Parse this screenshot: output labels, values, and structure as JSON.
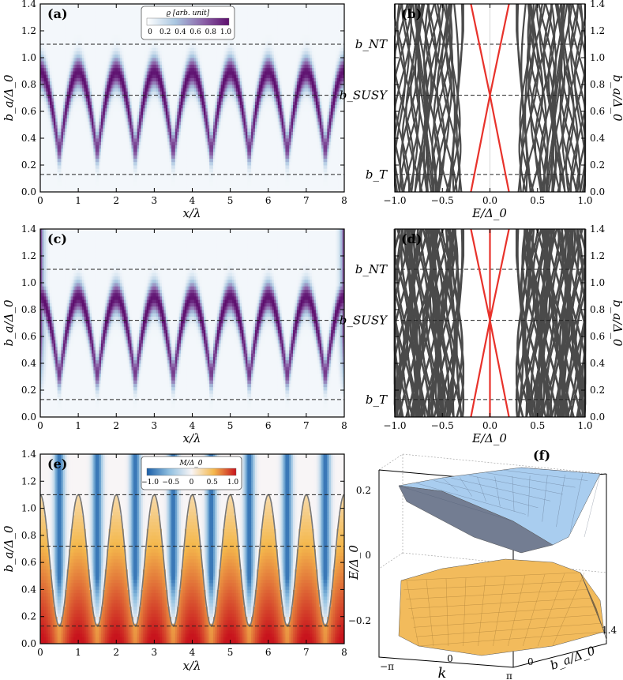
{
  "panels": {
    "a": {
      "label": "(a)",
      "xlabel": "x/λ",
      "ylabel": "b_a/Δ_0",
      "xticks": [
        "0",
        "1",
        "2",
        "3",
        "4",
        "5",
        "6",
        "7",
        "8"
      ],
      "yticks": [
        "0.0",
        "0.2",
        "0.4",
        "0.6",
        "0.8",
        "1.0",
        "1.2",
        "1.4"
      ],
      "colorbar": {
        "title": "ϱ [arb. unit]",
        "ticks": [
          "0",
          "0.2",
          "0.4",
          "0.6",
          "0.8",
          "1.0"
        ]
      }
    },
    "b": {
      "label": "(b)",
      "xlabel": "E/Δ_0",
      "ylabel": "b_a/Δ_0",
      "xticks": [
        "−1.0",
        "−0.5",
        "0.0",
        "0.5",
        "1.0"
      ],
      "yticks": [
        "0.0",
        "0.2",
        "0.4",
        "0.6",
        "0.8",
        "1.0",
        "1.2",
        "1.4"
      ],
      "markers": [
        "b_NT",
        "b_SUSY",
        "b_T"
      ]
    },
    "c": {
      "label": "(c)",
      "xlabel": "x/λ",
      "ylabel": "b_a/Δ_0",
      "xticks": [
        "0",
        "1",
        "2",
        "3",
        "4",
        "5",
        "6",
        "7",
        "8"
      ],
      "yticks": [
        "0.0",
        "0.2",
        "0.4",
        "0.6",
        "0.8",
        "1.0",
        "1.2",
        "1.4"
      ]
    },
    "d": {
      "label": "(d)",
      "xlabel": "E/Δ_0",
      "ylabel": "b_a/Δ_0",
      "xticks": [
        "−1.0",
        "−0.5",
        "0.0",
        "0.5",
        "1.0"
      ],
      "yticks": [
        "0.0",
        "0.2",
        "0.4",
        "0.6",
        "0.8",
        "1.0",
        "1.2",
        "1.4"
      ],
      "markers": [
        "b_NT",
        "b_SUSY",
        "b_T"
      ]
    },
    "e": {
      "label": "(e)",
      "xlabel": "x/λ",
      "ylabel": "b_a/Δ_0",
      "xticks": [
        "0",
        "1",
        "2",
        "3",
        "4",
        "5",
        "6",
        "7",
        "8"
      ],
      "yticks": [
        "0.0",
        "0.2",
        "0.4",
        "0.6",
        "0.8",
        "1.0",
        "1.2",
        "1.4"
      ],
      "colorbar": {
        "title": "M/Δ_0",
        "ticks": [
          "−1.0",
          "−0.5",
          "0",
          "0.5",
          "1.0"
        ]
      }
    },
    "f": {
      "label": "(f)",
      "zlabel": "E/Δ_0",
      "klabel": "k",
      "blabel": "b_a/Δ_0",
      "zticks": [
        "0.2",
        "0",
        "−0.2"
      ],
      "kticks": [
        "−π",
        "0",
        "π"
      ],
      "bticks": [
        "0",
        "1.4"
      ]
    }
  },
  "chart_data": [
    {
      "type": "heatmap",
      "panel": "a",
      "title": "",
      "xlabel": "x/λ",
      "ylabel": "b_a/Δ_0",
      "xlim": [
        0,
        8
      ],
      "ylim": [
        0,
        1.4
      ],
      "colorscale": "white-blue-purple",
      "clim": [
        0,
        1.0
      ],
      "hlines": [
        0.13,
        0.72,
        1.1
      ]
    },
    {
      "type": "line",
      "panel": "b",
      "title": "",
      "xlabel": "E/Δ_0",
      "ylabel": "b_a/Δ_0",
      "xlim": [
        -1.0,
        1.0
      ],
      "ylim": [
        0,
        1.4
      ],
      "hlines": [
        0.13,
        0.72,
        1.1
      ],
      "hline_labels": [
        "b_T",
        "b_SUSY",
        "b_NT"
      ],
      "crossing": {
        "E": 0.0,
        "b": 0.72
      },
      "series": [
        {
          "color": "#e8322b",
          "points": [
            [
              -0.2,
              0.0
            ],
            [
              0.0,
              0.72
            ],
            [
              0.2,
              1.4
            ]
          ]
        },
        {
          "color": "#e8322b",
          "points": [
            [
              0.2,
              0.0
            ],
            [
              0.0,
              0.72
            ],
            [
              -0.2,
              1.4
            ]
          ]
        }
      ]
    },
    {
      "type": "heatmap",
      "panel": "c",
      "title": "",
      "xlabel": "x/λ",
      "ylabel": "b_a/Δ_0",
      "xlim": [
        0,
        8
      ],
      "ylim": [
        0,
        1.4
      ],
      "colorscale": "white-blue-purple",
      "hlines": [
        0.13,
        0.72,
        1.1
      ]
    },
    {
      "type": "line",
      "panel": "d",
      "title": "",
      "xlabel": "E/Δ_0",
      "ylabel": "b_a/Δ_0",
      "xlim": [
        -1.0,
        1.0
      ],
      "ylim": [
        0,
        1.4
      ],
      "hlines": [
        0.13,
        0.72,
        1.1
      ],
      "hline_labels": [
        "b_T",
        "b_SUSY",
        "b_NT"
      ],
      "crossing": {
        "E": 0.0,
        "b": 0.72
      },
      "series": [
        {
          "color": "#e8322b",
          "points": [
            [
              -0.2,
              0.0
            ],
            [
              0.0,
              0.72
            ],
            [
              0.2,
              1.4
            ]
          ]
        },
        {
          "color": "#e8322b",
          "points": [
            [
              0.2,
              0.0
            ],
            [
              0.0,
              0.72
            ],
            [
              -0.2,
              1.4
            ]
          ]
        },
        {
          "color": "#e8322b",
          "points": [
            [
              0.0,
              0.0
            ],
            [
              0.0,
              1.4
            ]
          ]
        }
      ]
    },
    {
      "type": "heatmap",
      "panel": "e",
      "title": "",
      "xlabel": "x/λ",
      "ylabel": "b_a/Δ_0",
      "xlim": [
        0,
        8
      ],
      "ylim": [
        0,
        1.4
      ],
      "colorscale": "blue-white-yellow-red",
      "clim": [
        -1.0,
        1.0
      ],
      "hlines": [
        0.13,
        0.72,
        1.1
      ],
      "contour": {
        "period": 1.0,
        "min": 0.13,
        "max": 1.1
      }
    },
    {
      "type": "surface",
      "panel": "f",
      "title": "",
      "xlabel": "k",
      "ylabel": "b_a/Δ_0",
      "zlabel": "E/Δ_0",
      "xlim": [
        "−π",
        "π"
      ],
      "ylim": [
        0,
        1.4
      ],
      "zlim": [
        -0.25,
        0.25
      ],
      "upper_color": "#a9cdef",
      "lower_color": "#f2bb5c"
    }
  ]
}
